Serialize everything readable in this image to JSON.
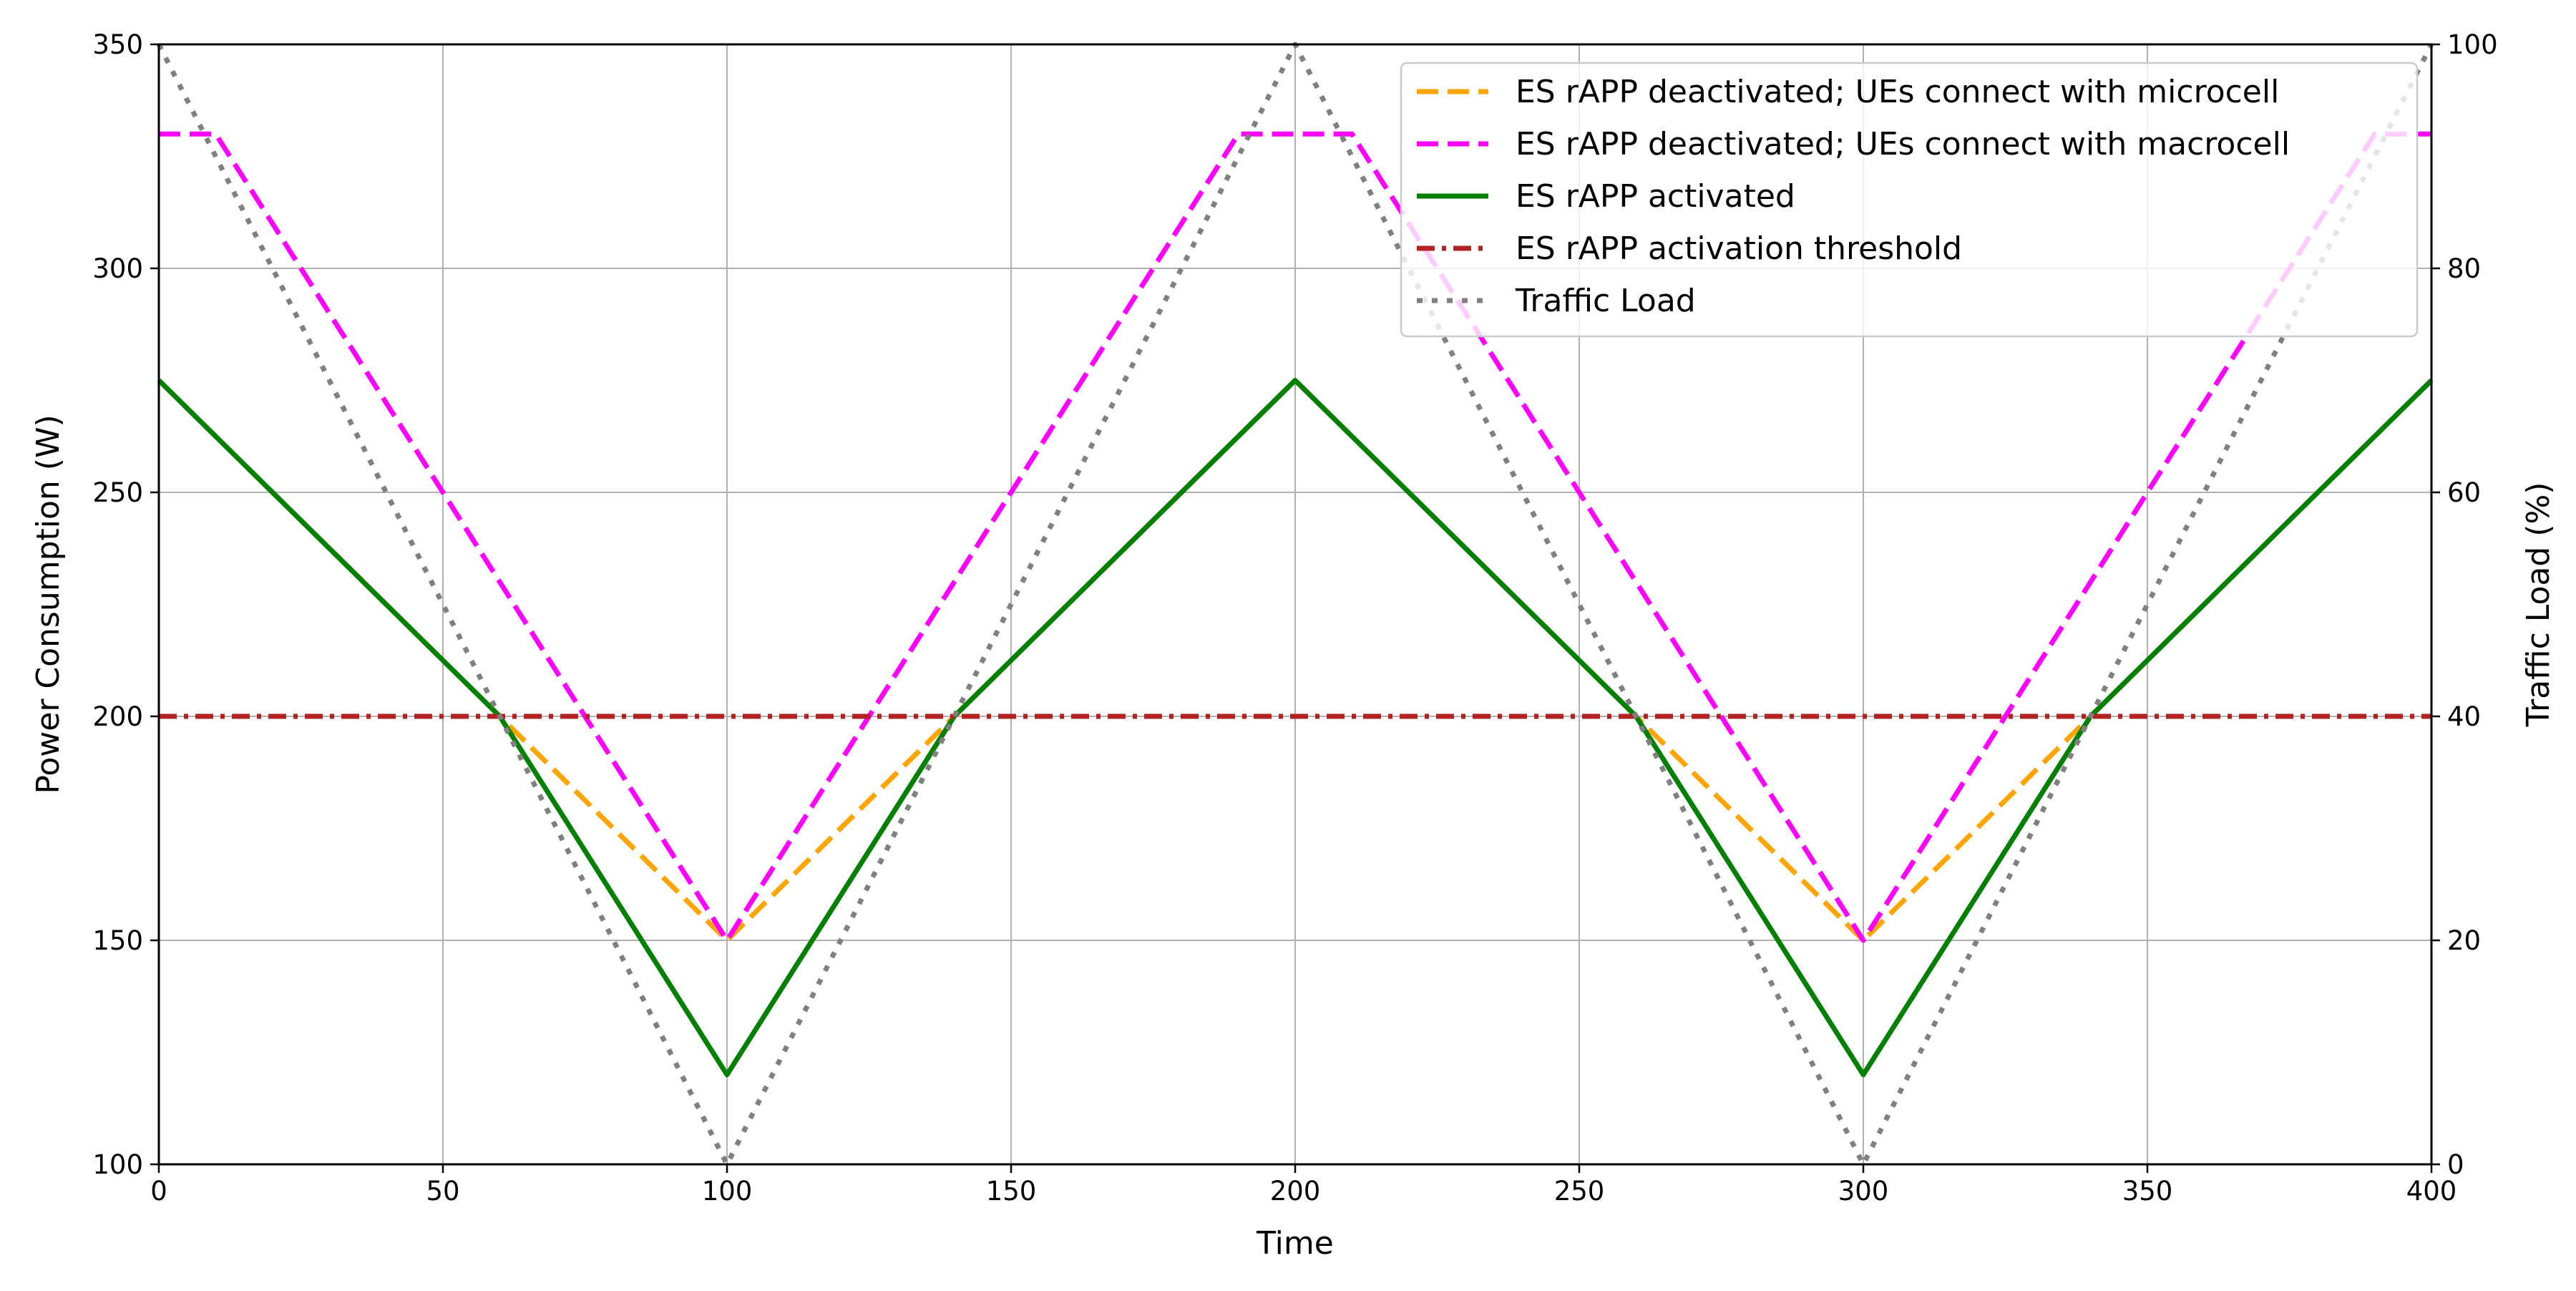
{
  "chart_data": {
    "type": "line",
    "title": "",
    "xlabel": "Time",
    "ylabel": "Power Consumption (W)",
    "y2label": "Traffic Load (%)",
    "xlim": [
      0,
      400
    ],
    "ylim": [
      100,
      350
    ],
    "y2lim": [
      0,
      100
    ],
    "xticks": [
      0,
      50,
      100,
      150,
      200,
      250,
      300,
      350,
      400
    ],
    "yticks": [
      100,
      150,
      200,
      250,
      300,
      350
    ],
    "y2ticks": [
      0,
      20,
      40,
      60,
      80,
      100
    ],
    "grid": true,
    "legend_position": "top-right",
    "series": [
      {
        "name": "ES rAPP deactivated; UEs connect with microcell",
        "axis": "left",
        "color": "#ffa500",
        "style": "dashed",
        "x": [
          0,
          100,
          200,
          300,
          400
        ],
        "y": [
          275,
          150,
          275,
          150,
          275
        ]
      },
      {
        "name": "ES rAPP deactivated; UEs connect with macrocell",
        "axis": "left",
        "color": "#ff00ff",
        "style": "dashed",
        "x": [
          0,
          10,
          100,
          190,
          210,
          300,
          390,
          400
        ],
        "y": [
          330,
          330,
          150,
          330,
          330,
          150,
          330,
          330
        ]
      },
      {
        "name": "ES rAPP activated",
        "axis": "left",
        "color": "#008000",
        "style": "solid",
        "x": [
          0,
          60,
          100,
          140,
          200,
          260,
          300,
          340,
          400
        ],
        "y": [
          275,
          200,
          120,
          200,
          275,
          200,
          120,
          200,
          275
        ]
      },
      {
        "name": "ES rAPP activation threshold",
        "axis": "left",
        "color": "#b22222",
        "style": "dashdot",
        "x": [
          0,
          400
        ],
        "y": [
          200,
          200
        ]
      },
      {
        "name": "Traffic Load",
        "axis": "right",
        "color": "#808080",
        "style": "dotted",
        "x": [
          0,
          100,
          200,
          300,
          400
        ],
        "y": [
          100,
          0,
          100,
          0,
          100
        ]
      }
    ]
  }
}
